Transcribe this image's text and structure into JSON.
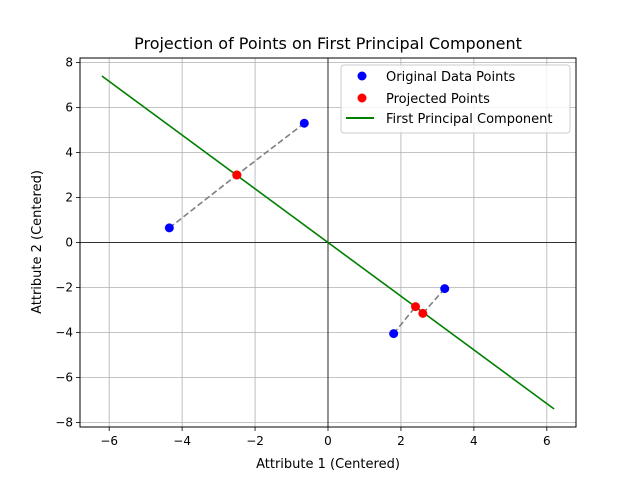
{
  "chart_data": {
    "type": "scatter",
    "title": "Projection of Points on First Principal Component",
    "xlabel": "Attribute 1 (Centered)",
    "ylabel": "Attribute 2 (Centered)",
    "xlim": [
      -6.8,
      6.8
    ],
    "ylim": [
      -8.2,
      8.2
    ],
    "xticks": [
      -6,
      -4,
      -2,
      0,
      2,
      4,
      6
    ],
    "yticks": [
      -8,
      -6,
      -4,
      -2,
      0,
      2,
      4,
      6,
      8
    ],
    "xtick_labels": [
      "−6",
      "−4",
      "−2",
      "0",
      "2",
      "4",
      "6"
    ],
    "ytick_labels": [
      "−8",
      "−6",
      "−4",
      "−2",
      "0",
      "2",
      "4",
      "6",
      "8"
    ],
    "grid": true,
    "legend_position": "top-right",
    "reference_lines": {
      "x": 0,
      "y": 0,
      "color": "#000000"
    },
    "series": [
      {
        "name": "Original Data Points",
        "kind": "scatter",
        "color": "#0000ff",
        "points": [
          [
            -4.35,
            0.65
          ],
          [
            -0.65,
            5.3
          ],
          [
            1.8,
            -4.05
          ],
          [
            3.2,
            -2.05
          ]
        ]
      },
      {
        "name": "Projected Points",
        "kind": "scatter",
        "color": "#ff0000",
        "points": [
          [
            -2.5,
            3.0
          ],
          [
            -2.5,
            3.0
          ],
          [
            2.4,
            -2.85
          ],
          [
            2.6,
            -3.15
          ]
        ]
      },
      {
        "name": "First Principal Component",
        "kind": "line",
        "color": "#008000",
        "points": [
          [
            -6.2,
            7.4
          ],
          [
            6.2,
            -7.4
          ]
        ]
      }
    ],
    "projection_lines": {
      "color": "#808080",
      "style": "dashed",
      "segments": [
        [
          [
            -4.35,
            0.65
          ],
          [
            -2.5,
            3.0
          ]
        ],
        [
          [
            -0.65,
            5.3
          ],
          [
            -2.5,
            3.0
          ]
        ],
        [
          [
            1.8,
            -4.05
          ],
          [
            2.4,
            -2.85
          ]
        ],
        [
          [
            3.2,
            -2.05
          ],
          [
            2.6,
            -3.15
          ]
        ]
      ]
    }
  }
}
